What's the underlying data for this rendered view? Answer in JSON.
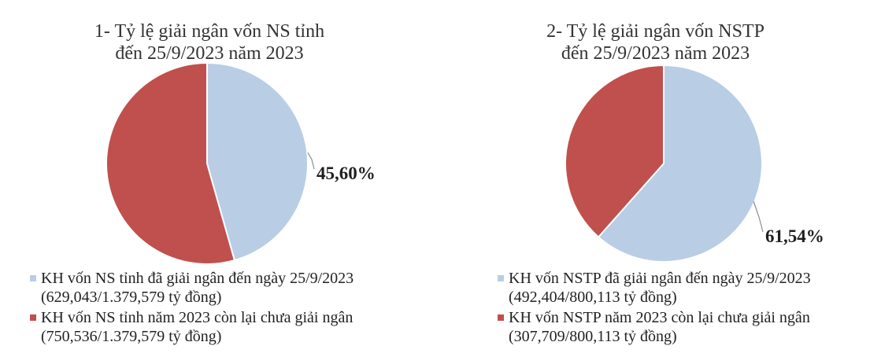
{
  "chart_data": [
    {
      "type": "pie",
      "title_lines": [
        "1- Tỷ lệ giải ngân vốn NS tỉnh",
        "đến 25/9/2023  năm 2023"
      ],
      "slices": [
        {
          "value": 45.6,
          "label": "45,60%",
          "color": "#b9cde5",
          "legend_lines": [
            "KH vốn NS tỉnh đã giải ngân đến ngày 25/9/2023",
            "(629,043/1.379,579  tỷ đồng)"
          ]
        },
        {
          "value": 54.4,
          "label": "",
          "color": "#c0504d",
          "legend_lines": [
            "KH vốn NS tỉnh năm 2023 còn lại chưa giải ngân",
            "(750,536/1.379,579  tỷ đồng)"
          ]
        }
      ],
      "legend_position": "bottom"
    },
    {
      "type": "pie",
      "title_lines": [
        "2- Tỷ lệ giải ngân vốn NSTP",
        "đến 25/9/2023  năm 2023"
      ],
      "slices": [
        {
          "value": 61.54,
          "label": "61,54%",
          "color": "#b9cde5",
          "legend_lines": [
            "KH vốn NSTP  đã giải ngân đến ngày 25/9/2023",
            "(492,404/800,113 tỷ đồng)"
          ]
        },
        {
          "value": 38.46,
          "label": "",
          "color": "#c0504d",
          "legend_lines": [
            "KH vốn NSTP năm 2023 còn lại chưa giải ngân",
            "(307,709/800,113 tỷ đồng)"
          ]
        }
      ],
      "legend_position": "bottom"
    }
  ]
}
